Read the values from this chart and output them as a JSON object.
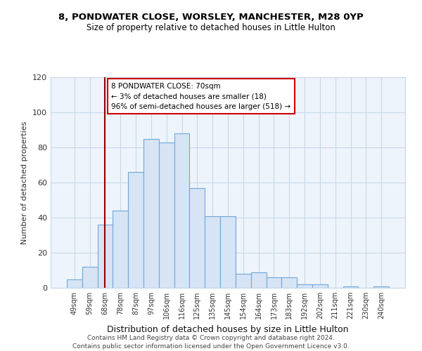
{
  "title1": "8, PONDWATER CLOSE, WORSLEY, MANCHESTER, M28 0YP",
  "title2": "Size of property relative to detached houses in Little Hulton",
  "xlabel": "Distribution of detached houses by size in Little Hulton",
  "ylabel": "Number of detached properties",
  "bar_labels": [
    "49sqm",
    "59sqm",
    "68sqm",
    "78sqm",
    "87sqm",
    "97sqm",
    "106sqm",
    "116sqm",
    "125sqm",
    "135sqm",
    "145sqm",
    "154sqm",
    "164sqm",
    "173sqm",
    "183sqm",
    "192sqm",
    "202sqm",
    "211sqm",
    "221sqm",
    "230sqm",
    "240sqm"
  ],
  "bar_heights": [
    5,
    12,
    36,
    44,
    66,
    85,
    83,
    88,
    57,
    41,
    41,
    8,
    9,
    6,
    6,
    2,
    2,
    0,
    1,
    0,
    1
  ],
  "bar_color": "#d6e4f5",
  "bar_edge_color": "#6fa8d8",
  "vline_x_idx": 2,
  "vline_color": "#990000",
  "annotation_title": "8 PONDWATER CLOSE: 70sqm",
  "annotation_line1": "← 3% of detached houses are smaller (18)",
  "annotation_line2": "96% of semi-detached houses are larger (518) →",
  "annotation_box_edge": "#cc0000",
  "ylim": [
    0,
    120
  ],
  "yticks": [
    0,
    20,
    40,
    60,
    80,
    100,
    120
  ],
  "grid_color": "#c8d8e8",
  "bg_color": "#eef4fb",
  "footer1": "Contains HM Land Registry data © Crown copyright and database right 2024.",
  "footer2": "Contains public sector information licensed under the Open Government Licence v3.0."
}
